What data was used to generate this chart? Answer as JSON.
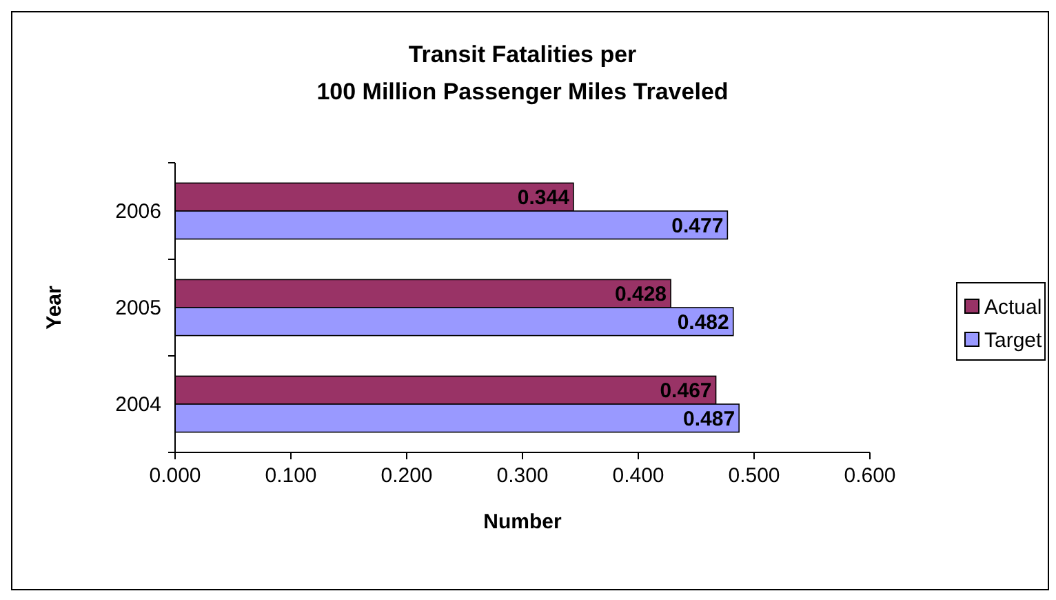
{
  "chart_data": {
    "type": "bar",
    "orientation": "horizontal",
    "title": "Transit Fatalities per\n100 Million Passenger Miles Traveled",
    "xlabel": "Number",
    "ylabel": "Year",
    "categories": [
      "2006",
      "2005",
      "2004"
    ],
    "series": [
      {
        "name": "Actual",
        "color": "#993366",
        "values": [
          0.344,
          0.428,
          0.467
        ]
      },
      {
        "name": "Target",
        "color": "#9999ff",
        "values": [
          0.477,
          0.482,
          0.487
        ]
      }
    ],
    "xlim": [
      0,
      0.6
    ],
    "xticks": [
      {
        "value": 0,
        "label": "0.000"
      },
      {
        "value": 0.1,
        "label": "0.100"
      },
      {
        "value": 0.2,
        "label": "0.200"
      },
      {
        "value": 0.3,
        "label": "0.300"
      },
      {
        "value": 0.4,
        "label": "0.400"
      },
      {
        "value": 0.5,
        "label": "0.500"
      },
      {
        "value": 0.6,
        "label": "0.600"
      }
    ],
    "data_labels": true,
    "legend": "right",
    "grid": false
  }
}
